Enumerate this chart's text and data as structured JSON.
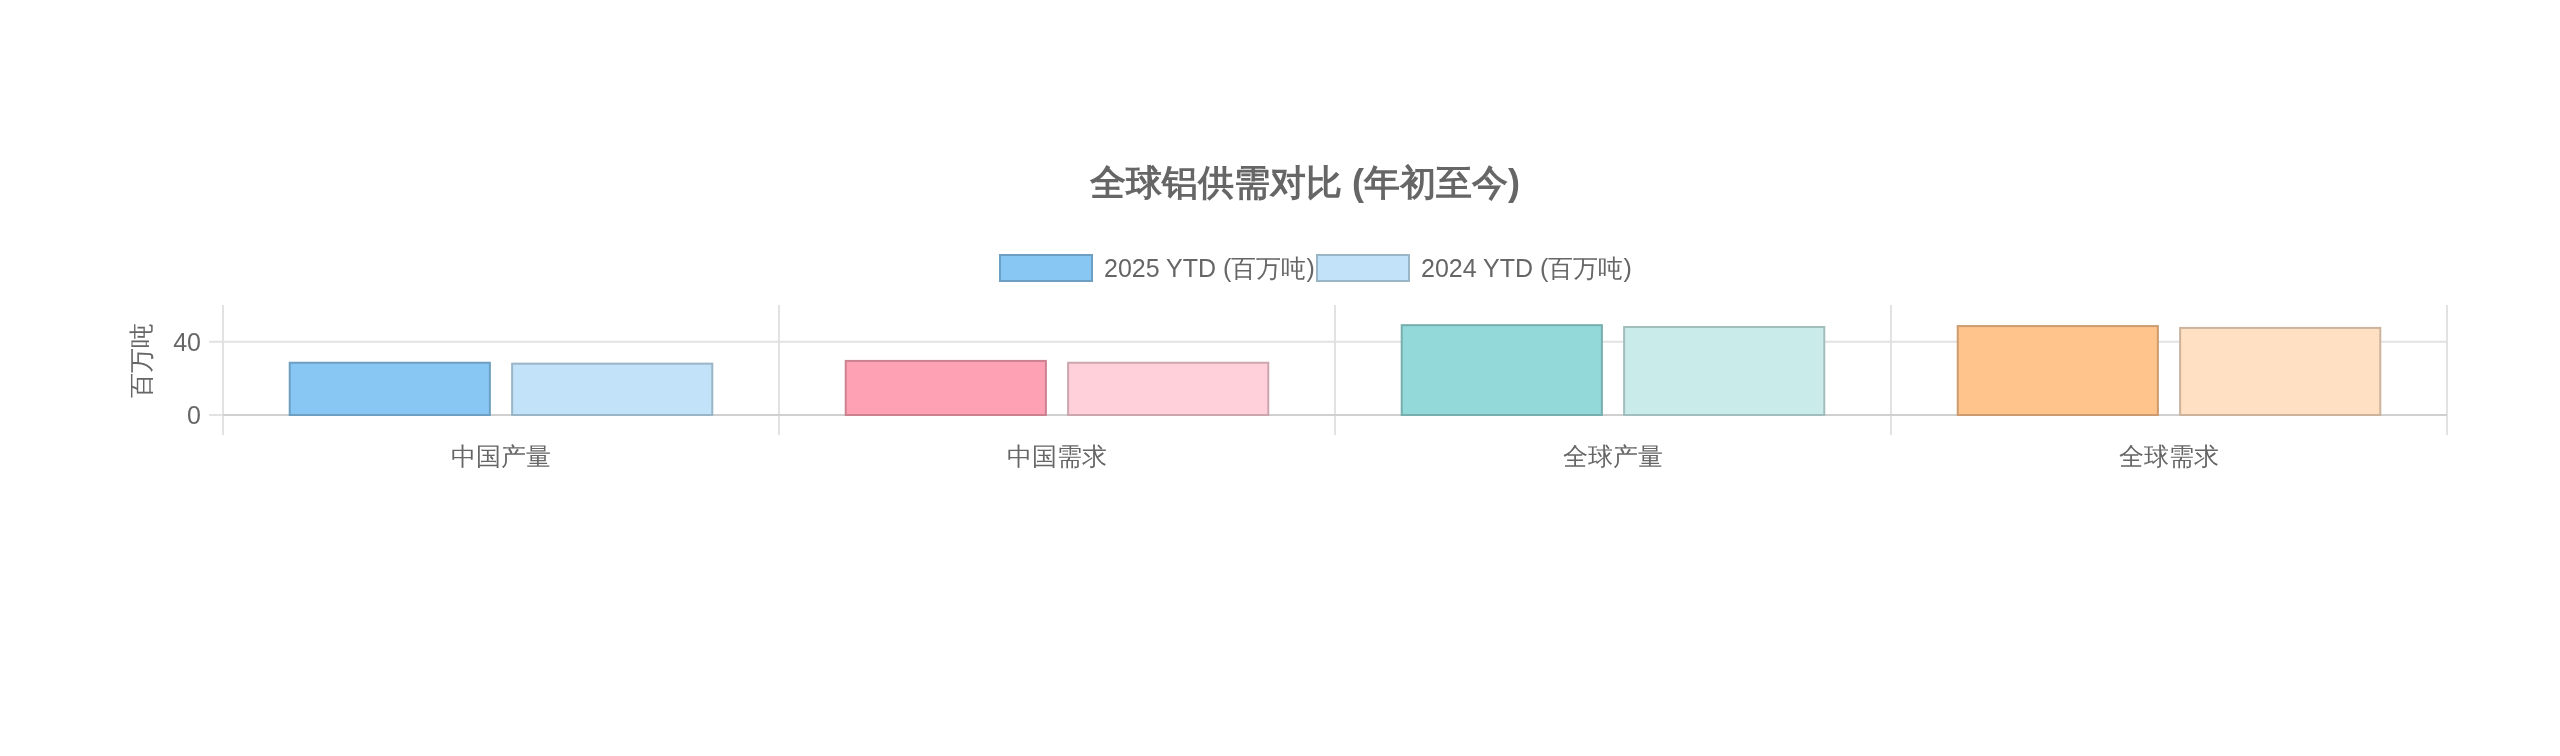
{
  "chart_data": {
    "type": "bar",
    "title": "全球铝供需对比 (年初至今)",
    "ylabel": "百万吨",
    "categories": [
      "中国产量",
      "中国需求",
      "全球产量",
      "全球需求"
    ],
    "series": [
      {
        "name": "2025 YTD (百万吨)",
        "color": "#88c7f3",
        "colors": [
          "#88c7f3",
          "#ffa1b5",
          "#93d9d9",
          "#ffc38c"
        ],
        "values": [
          28.5,
          29.5,
          49,
          48.5
        ]
      },
      {
        "name": "2024 YTD (百万吨)",
        "color": "#c1e2f8",
        "colors": [
          "#c1e2f8",
          "#ffd0da",
          "#c9eceb",
          "#ffe0c3"
        ],
        "values": [
          28,
          28.5,
          48,
          47.5
        ]
      }
    ],
    "ylim": [
      0,
      60
    ],
    "yticks": [
      0,
      40
    ],
    "grid": true,
    "legend": "top"
  }
}
